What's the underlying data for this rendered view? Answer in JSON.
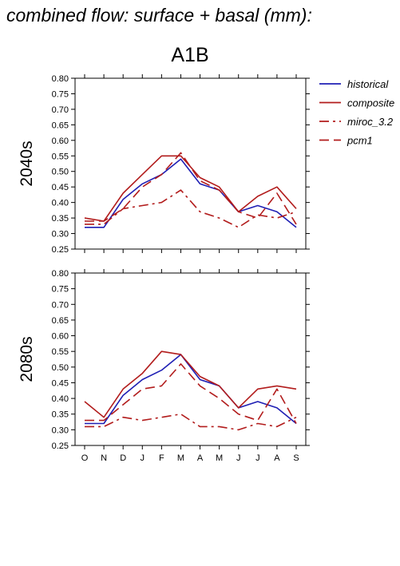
{
  "page_title": "combined flow: surface + basal (mm):",
  "scenario": "A1B",
  "chart_data": {
    "type": "line",
    "categories": [
      "O",
      "N",
      "D",
      "J",
      "F",
      "M",
      "A",
      "M",
      "J",
      "J",
      "A",
      "S"
    ],
    "ylim": [
      0.25,
      0.8
    ],
    "yticks": [
      "0.25",
      "0.30",
      "0.35",
      "0.40",
      "0.45",
      "0.50",
      "0.55",
      "0.60",
      "0.65",
      "0.70",
      "0.75",
      "0.80"
    ],
    "grid": false,
    "legend_position": "right",
    "legend": [
      {
        "name": "historical",
        "color": "#1f1fb4",
        "dash": "solid"
      },
      {
        "name": "composite",
        "color": "#b21c1c",
        "dash": "solid"
      },
      {
        "name": "miroc_3.2",
        "color": "#b21c1c",
        "dash": "dashdot"
      },
      {
        "name": "pcm1",
        "color": "#b21c1c",
        "dash": "dashed"
      }
    ],
    "panels": [
      {
        "label": "2040s",
        "series": [
          {
            "name": "historical",
            "values": [
              0.32,
              0.32,
              0.41,
              0.46,
              0.49,
              0.54,
              0.46,
              0.44,
              0.37,
              0.39,
              0.37,
              0.32
            ]
          },
          {
            "name": "composite",
            "values": [
              0.35,
              0.34,
              0.43,
              0.49,
              0.55,
              0.55,
              0.48,
              0.45,
              0.37,
              0.42,
              0.45,
              0.38
            ]
          },
          {
            "name": "miroc_3.2",
            "values": [
              0.33,
              0.33,
              0.38,
              0.39,
              0.4,
              0.44,
              0.37,
              0.35,
              0.32,
              0.36,
              0.35,
              0.37
            ]
          },
          {
            "name": "pcm1",
            "values": [
              0.34,
              0.34,
              0.38,
              0.45,
              0.49,
              0.56,
              0.47,
              0.44,
              0.37,
              0.35,
              0.43,
              0.33
            ]
          }
        ]
      },
      {
        "label": "2080s",
        "series": [
          {
            "name": "historical",
            "values": [
              0.32,
              0.32,
              0.41,
              0.46,
              0.49,
              0.54,
              0.46,
              0.44,
              0.37,
              0.39,
              0.37,
              0.32
            ]
          },
          {
            "name": "composite",
            "values": [
              0.39,
              0.34,
              0.43,
              0.48,
              0.55,
              0.54,
              0.47,
              0.44,
              0.37,
              0.43,
              0.44,
              0.43
            ]
          },
          {
            "name": "miroc_3.2",
            "values": [
              0.31,
              0.31,
              0.34,
              0.33,
              0.34,
              0.35,
              0.31,
              0.31,
              0.3,
              0.32,
              0.31,
              0.34
            ]
          },
          {
            "name": "pcm1",
            "values": [
              0.33,
              0.33,
              0.38,
              0.43,
              0.44,
              0.51,
              0.44,
              0.4,
              0.35,
              0.33,
              0.43,
              0.32
            ]
          }
        ]
      }
    ]
  }
}
